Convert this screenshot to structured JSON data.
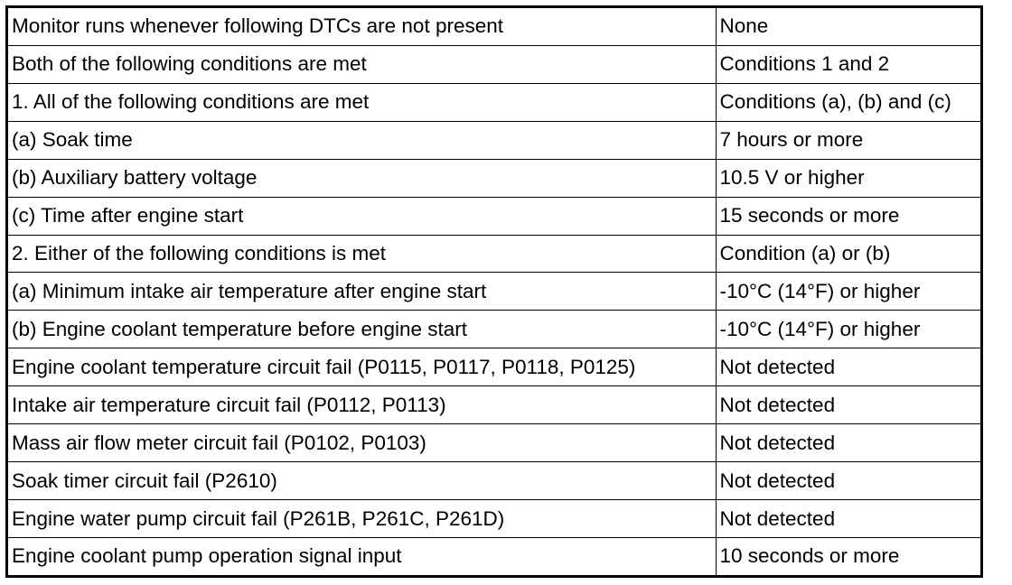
{
  "table": {
    "rows": [
      {
        "condition": "Monitor runs whenever following DTCs are not present",
        "value": "None"
      },
      {
        "condition": "Both of the following conditions are met",
        "value": "Conditions 1 and 2"
      },
      {
        "condition": "1. All of the following conditions are met",
        "value": "Conditions (a), (b) and (c)"
      },
      {
        "condition": "(a) Soak time",
        "value": "7 hours or more"
      },
      {
        "condition": "(b) Auxiliary battery voltage",
        "value": "10.5 V or higher"
      },
      {
        "condition": "(c) Time after engine start",
        "value": "15 seconds or more"
      },
      {
        "condition": "2. Either of the following conditions is met",
        "value": "Condition (a) or (b)"
      },
      {
        "condition": "(a) Minimum intake air temperature after engine start",
        "value": "-10°C (14°F) or higher"
      },
      {
        "condition": "(b) Engine coolant temperature before engine start",
        "value": "-10°C (14°F) or higher"
      },
      {
        "condition": "Engine coolant temperature circuit fail (P0115, P0117, P0118, P0125)",
        "value": "Not detected"
      },
      {
        "condition": "Intake air temperature circuit fail (P0112, P0113)",
        "value": "Not detected"
      },
      {
        "condition": "Mass air flow meter circuit fail (P0102, P0103)",
        "value": "Not detected"
      },
      {
        "condition": "Soak timer circuit fail (P2610)",
        "value": "Not detected"
      },
      {
        "condition": "Engine water pump circuit fail (P261B, P261C, P261D)",
        "value": "Not detected"
      },
      {
        "condition": "Engine coolant pump operation signal input",
        "value": "10 seconds or more"
      }
    ]
  }
}
